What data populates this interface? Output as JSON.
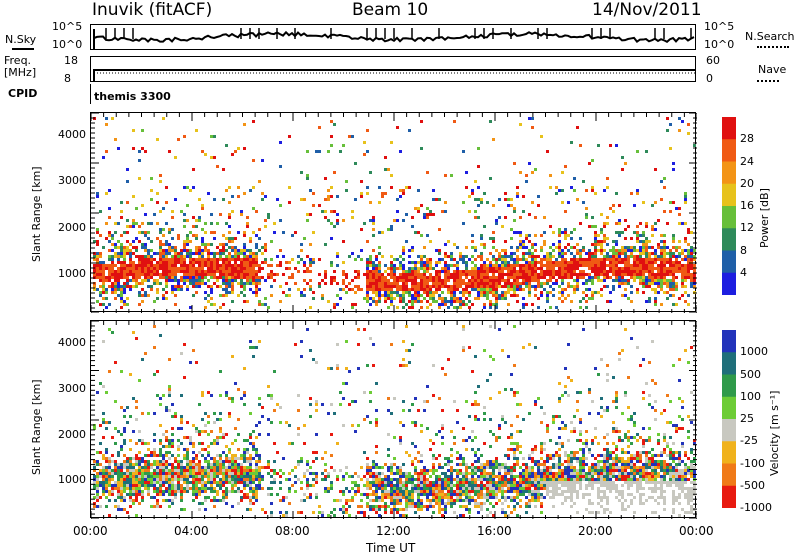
{
  "header": {
    "station": "Inuvik (fitACF)",
    "beam": "Beam 10",
    "date": "14/Nov/2011"
  },
  "top_panels": {
    "nsky_label": "N.Sky",
    "nsky_ticks": [
      "10^5",
      "10^0"
    ],
    "nsearch_label": "N.Search",
    "nsearch_ticks": [
      "10^5",
      "10^0"
    ],
    "freq_label": "Freq.",
    "freq_unit": "[MHz]",
    "freq_ticks": [
      "18",
      "8"
    ],
    "nave_label": "Nave",
    "nave_ticks": [
      "60",
      "0"
    ],
    "cpid_label": "CPID",
    "cpid_value": "themis 3300"
  },
  "colors": {
    "power": [
      "#1d1ee0",
      "#1f5fa8",
      "#2e8a5a",
      "#67bf3a",
      "#e7c21c",
      "#f39416",
      "#f05a14",
      "#e01010"
    ],
    "velocity": [
      "#2233bb",
      "#1f6f7a",
      "#2f9a4a",
      "#6dcc36",
      "#c8c8c0",
      "#f0b21c",
      "#f07a18",
      "#e81a10"
    ]
  },
  "chart_data": [
    {
      "type": "heatmap",
      "title": "",
      "ylabel": "Slant Range [km]",
      "xlabel": "",
      "x_ticks": [
        "00:00",
        "04:00",
        "08:00",
        "12:00",
        "16:00",
        "20:00",
        "00:00"
      ],
      "y_ticks": [
        1000,
        2000,
        3000,
        4000
      ],
      "ylim": [
        180,
        4500
      ],
      "colorbar": {
        "label": "Power [dB]",
        "ticks": [
          "4",
          "8",
          "12",
          "16",
          "20",
          "24",
          "28"
        ],
        "range": [
          0,
          30
        ]
      }
    },
    {
      "type": "heatmap",
      "title": "",
      "ylabel": "Slant Range [km]",
      "xlabel": "Time UT",
      "x_ticks": [
        "00:00",
        "04:00",
        "08:00",
        "12:00",
        "16:00",
        "20:00",
        "00:00"
      ],
      "y_ticks": [
        1000,
        2000,
        3000,
        4000
      ],
      "ylim": [
        180,
        4500
      ],
      "colorbar": {
        "label": "Velocity [m s⁻¹]",
        "ticks": [
          "1000",
          "500",
          "100",
          "25",
          "-25",
          "-100",
          "-500",
          "-1000"
        ]
      }
    }
  ]
}
